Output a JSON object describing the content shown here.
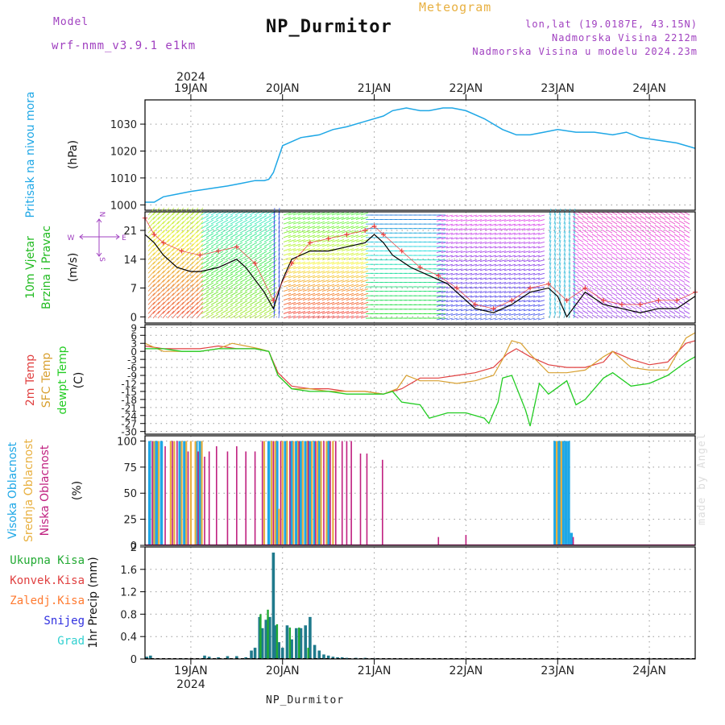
{
  "header": {
    "model_label": "Model",
    "model_name": "wrf-nmm_v3.9.1 e1km",
    "station": "NP_Durmitor",
    "product": "Meteogram",
    "lonlat": "lon,lat (19.0187E, 43.15N)",
    "altitude": "Nadmorska Visina 2212m",
    "model_altitude": "Nadmorska Visina u modelu 2024.23m",
    "footer": "NP_Durmitor",
    "watermark": "made by Angel",
    "year": "2024"
  },
  "colors": {
    "pressure": "#1ea7e6",
    "temp2m": "#e04040",
    "sfc": "#d8a030",
    "dewpt": "#22cc22",
    "high_cloud": "#1ea7e6",
    "mid_cloud": "#e8b040",
    "low_cloud": "#c02080",
    "total_precip": "#22aa33",
    "conv_precip": "#e04040",
    "frozen_precip": "#ff7a30",
    "snow": "#3030e0",
    "graupel": "#30d0d0",
    "precip_bar": "#1f7a8c"
  },
  "chart_data": [
    {
      "type": "line",
      "panel": "pressure",
      "ylabel": [
        "Pritisak na nivou mora",
        "(hPa)"
      ],
      "ylim": [
        998,
        1039
      ],
      "yticks": [
        1000,
        1010,
        1020,
        1030
      ],
      "x_day_ticks": [
        {
          "day": 19,
          "label": "19JAN"
        },
        {
          "day": 20,
          "label": "20JAN"
        },
        {
          "day": 21,
          "label": "21JAN"
        },
        {
          "day": 22,
          "label": "22JAN"
        },
        {
          "day": 23,
          "label": "23JAN"
        },
        {
          "day": 24,
          "label": "24JAN"
        }
      ],
      "xlim": [
        18.5,
        24.5
      ],
      "series": [
        {
          "x": [
            18.5,
            18.6,
            18.7,
            18.85,
            19.0,
            19.2,
            19.4,
            19.55,
            19.7,
            19.8,
            19.85,
            19.9,
            19.95,
            20.0,
            20.2,
            20.4,
            20.55,
            20.7,
            20.9,
            21.1,
            21.2,
            21.35,
            21.5,
            21.6,
            21.75,
            21.85,
            22.0,
            22.2,
            22.4,
            22.55,
            22.7,
            22.85,
            23.0,
            23.2,
            23.4,
            23.6,
            23.75,
            23.9,
            24.1,
            24.3,
            24.5
          ],
          "y": [
            1001,
            1001,
            1003,
            1004,
            1005,
            1006,
            1007,
            1008,
            1009,
            1009,
            1009.5,
            1012,
            1017,
            1022,
            1025,
            1026,
            1028,
            1029,
            1031,
            1033,
            1035,
            1036,
            1035,
            1035,
            1036,
            1036,
            1035,
            1032,
            1028,
            1026,
            1026,
            1027,
            1028,
            1027,
            1027,
            1026,
            1027,
            1025,
            1024,
            1023,
            1021
          ]
        }
      ]
    },
    {
      "type": "line",
      "panel": "wind",
      "ylabel": [
        "10m Vjetar",
        "Brzina i Pravac",
        "(m/s)"
      ],
      "compass_legend": [
        "N",
        "S",
        "W",
        "E"
      ],
      "ylim": [
        -1.5,
        25.5
      ],
      "yticks": [
        0,
        7,
        14,
        21
      ],
      "xlim": [
        18.5,
        24.5
      ],
      "series": [
        {
          "name": "speed",
          "x": [
            18.5,
            18.6,
            18.7,
            18.85,
            19.0,
            19.1,
            19.3,
            19.5,
            19.6,
            19.7,
            19.8,
            19.9,
            20.0,
            20.1,
            20.3,
            20.5,
            20.7,
            20.9,
            21.0,
            21.1,
            21.2,
            21.4,
            21.6,
            21.8,
            21.9,
            22.1,
            22.3,
            22.5,
            22.7,
            22.9,
            23.0,
            23.1,
            23.2,
            23.3,
            23.5,
            23.7,
            23.9,
            24.1,
            24.3,
            24.5
          ],
          "y": [
            20,
            18,
            15,
            12,
            11,
            11,
            12,
            14,
            12,
            9,
            6,
            2,
            9,
            14,
            16,
            16,
            17,
            18,
            20,
            18,
            15,
            12,
            10,
            8,
            6,
            2,
            1,
            3,
            6,
            7,
            5,
            0,
            3,
            6,
            3,
            2,
            1,
            2,
            2,
            5
          ]
        },
        {
          "name": "gust",
          "x": [
            18.5,
            18.6,
            18.7,
            18.9,
            19.1,
            19.3,
            19.5,
            19.7,
            19.9,
            20.1,
            20.3,
            20.5,
            20.7,
            20.9,
            21.0,
            21.1,
            21.3,
            21.5,
            21.7,
            21.9,
            22.1,
            22.3,
            22.5,
            22.7,
            22.9,
            23.1,
            23.3,
            23.5,
            23.7,
            23.9,
            24.1,
            24.3,
            24.5
          ],
          "y": [
            24,
            20,
            18,
            16,
            15,
            16,
            17,
            13,
            4,
            13,
            18,
            19,
            20,
            21,
            22,
            20,
            16,
            12,
            10,
            7,
            3,
            2,
            4,
            7,
            8,
            4,
            7,
            4,
            3,
            3,
            4,
            4,
            6
          ]
        }
      ]
    },
    {
      "type": "line",
      "panel": "temperature",
      "ylabel": [
        "2m Temp",
        "SFC Temp",
        "dewpt Temp",
        "(C)"
      ],
      "ylim": [
        -31,
        10
      ],
      "yticks": [
        9,
        6,
        3,
        0,
        -3,
        -6,
        -9,
        -12,
        -15,
        -18,
        -21,
        -24,
        -27,
        -30
      ],
      "ytick_labels": [
        "9",
        "6",
        "3",
        "0",
        "-3",
        "-6",
        "-9",
        "-12",
        "-15",
        "-18",
        "-21",
        "-24",
        "-27",
        "-30"
      ],
      "xlim": [
        18.5,
        24.5
      ],
      "series": [
        {
          "name": "2m Temp",
          "x": [
            18.5,
            18.7,
            18.9,
            19.1,
            19.3,
            19.5,
            19.7,
            19.85,
            19.95,
            20.1,
            20.3,
            20.5,
            20.7,
            20.9,
            21.1,
            21.3,
            21.5,
            21.7,
            21.9,
            22.1,
            22.3,
            22.45,
            22.55,
            22.7,
            22.9,
            23.1,
            23.3,
            23.5,
            23.6,
            23.8,
            24.0,
            24.2,
            24.4,
            24.5
          ],
          "y": [
            2,
            1,
            1,
            1,
            2,
            1,
            1,
            0,
            -8,
            -13,
            -14,
            -14,
            -15,
            -15,
            -16,
            -14,
            -10,
            -10,
            -9,
            -8,
            -6,
            -1,
            1,
            -2,
            -5,
            -6,
            -6,
            -4,
            0,
            -3,
            -5,
            -4,
            3,
            4
          ]
        },
        {
          "name": "SFC Temp",
          "x": [
            18.5,
            18.7,
            18.9,
            19.1,
            19.3,
            19.45,
            19.6,
            19.75,
            19.85,
            19.95,
            20.1,
            20.3,
            20.5,
            20.7,
            20.9,
            21.1,
            21.25,
            21.35,
            21.5,
            21.7,
            21.9,
            22.1,
            22.3,
            22.4,
            22.5,
            22.6,
            22.7,
            22.9,
            23.1,
            23.3,
            23.5,
            23.6,
            23.8,
            24.0,
            24.2,
            24.4,
            24.5
          ],
          "y": [
            3,
            0,
            0,
            0,
            1,
            3,
            2,
            1,
            0,
            -9,
            -14,
            -14,
            -15,
            -15,
            -15,
            -16,
            -14,
            -9,
            -11,
            -11,
            -12,
            -11,
            -9,
            -3,
            4,
            3,
            -1,
            -8,
            -8,
            -7,
            -2,
            0,
            -6,
            -7,
            -7,
            5,
            7
          ]
        },
        {
          "name": "dewpt Temp",
          "x": [
            18.5,
            18.7,
            18.9,
            19.1,
            19.3,
            19.5,
            19.7,
            19.85,
            19.95,
            20.1,
            20.3,
            20.5,
            20.7,
            20.9,
            21.1,
            21.2,
            21.3,
            21.5,
            21.6,
            21.8,
            22.0,
            22.2,
            22.25,
            22.35,
            22.4,
            22.5,
            22.65,
            22.7,
            22.8,
            22.9,
            23.1,
            23.2,
            23.3,
            23.5,
            23.6,
            23.8,
            24.0,
            24.2,
            24.4,
            24.5
          ],
          "y": [
            1,
            1,
            0,
            0,
            1,
            1,
            1,
            0,
            -9,
            -14,
            -15,
            -15,
            -16,
            -16,
            -16,
            -15,
            -19,
            -20,
            -25,
            -23,
            -23,
            -25,
            -27,
            -19,
            -10,
            -9,
            -22,
            -28,
            -12,
            -16,
            -11,
            -20,
            -18,
            -10,
            -8,
            -13,
            -12,
            -9,
            -4,
            -2
          ]
        }
      ]
    },
    {
      "type": "bar",
      "panel": "cloud",
      "ylabel": [
        "Visoka Oblacnost",
        "Srednja Oblacnost",
        "Niska Oblacnost",
        "(%)"
      ],
      "ylim": [
        0,
        105
      ],
      "yticks": [
        0,
        25,
        50,
        75,
        100
      ],
      "xlim": [
        18.5,
        24.5
      ],
      "series": [
        {
          "name": "Visoka Oblacnost",
          "x": [
            18.55,
            18.6,
            18.63,
            18.68,
            18.88,
            18.93,
            19.06,
            19.1,
            19.85,
            19.94,
            20.03,
            20.1,
            20.15,
            20.2,
            20.25,
            20.3,
            20.35,
            20.4,
            20.5,
            22.97,
            23.0,
            23.03,
            23.06,
            23.09,
            23.12,
            23.15
          ],
          "y": [
            100,
            100,
            100,
            100,
            100,
            100,
            100,
            100,
            100,
            100,
            100,
            100,
            100,
            100,
            100,
            100,
            100,
            100,
            100,
            100,
            100,
            100,
            100,
            100,
            100,
            12
          ]
        },
        {
          "name": "Srednja Oblacnost",
          "x": [
            18.6,
            18.65,
            18.78,
            18.82,
            18.9,
            18.95,
            19.0,
            19.05,
            19.12,
            19.8,
            19.88,
            19.92,
            19.96,
            20.0,
            20.05,
            20.12,
            20.17,
            20.22,
            20.27,
            20.32,
            20.38,
            20.42,
            20.48,
            20.55,
            22.99,
            23.04
          ],
          "y": [
            100,
            100,
            100,
            100,
            100,
            100,
            100,
            100,
            100,
            100,
            100,
            100,
            35,
            100,
            100,
            100,
            100,
            100,
            100,
            100,
            100,
            100,
            100,
            100,
            100,
            100
          ]
        },
        {
          "name": "Niska Oblacnost",
          "x": [
            18.58,
            18.72,
            18.8,
            18.85,
            18.97,
            19.08,
            19.15,
            19.2,
            19.28,
            19.4,
            19.5,
            19.6,
            19.7,
            19.78,
            19.9,
            19.98,
            20.08,
            20.18,
            20.28,
            20.36,
            20.45,
            20.52,
            20.58,
            20.65,
            20.7,
            20.75,
            20.85,
            20.92,
            21.09,
            21.7,
            22.0,
            23.17
          ],
          "y": [
            100,
            95,
            100,
            100,
            90,
            90,
            85,
            90,
            95,
            90,
            95,
            90,
            90,
            100,
            100,
            100,
            100,
            100,
            100,
            100,
            100,
            100,
            100,
            100,
            100,
            100,
            88,
            88,
            82,
            8,
            10,
            8
          ]
        }
      ]
    },
    {
      "type": "bar",
      "panel": "precipitation",
      "ylabel": [
        "1hr Precip (mm)"
      ],
      "legend": [
        "Ukupna Kisa",
        "Konvek.Kisa",
        "Zaledj.Kisa",
        "Snijeg",
        "Grad"
      ],
      "ylim": [
        0,
        2.0
      ],
      "yticks": [
        0,
        0.4,
        0.8,
        1.2,
        1.6,
        2.0
      ],
      "ytick_labels": [
        "0",
        "0.4",
        "0.8",
        "1.2",
        "1.6",
        "2"
      ],
      "x_day_ticks_bottom": [
        {
          "day": 19,
          "label": "19JAN"
        },
        {
          "day": 20,
          "label": "20JAN"
        },
        {
          "day": 21,
          "label": "21JAN"
        },
        {
          "day": 22,
          "label": "22JAN"
        },
        {
          "day": 23,
          "label": "23JAN"
        },
        {
          "day": 24,
          "label": "24JAN"
        }
      ],
      "xlim": [
        18.5,
        24.5
      ],
      "series": [
        {
          "name": "Snijeg",
          "x": [
            18.52,
            18.56,
            18.9,
            19.15,
            19.2,
            19.3,
            19.4,
            19.5,
            19.6,
            19.66,
            19.7,
            19.75,
            19.78,
            19.82,
            19.86,
            19.9,
            19.93,
            19.96,
            20.0,
            20.05,
            20.1,
            20.15,
            20.2,
            20.25,
            20.3,
            20.35,
            20.4,
            20.45,
            20.5,
            20.55,
            20.6,
            20.65,
            20.7,
            20.8,
            20.9,
            21.0
          ],
          "y": [
            0.04,
            0.06,
            0.01,
            0.06,
            0.04,
            0.03,
            0.05,
            0.05,
            0.03,
            0.15,
            0.2,
            0.75,
            0.55,
            0.7,
            0.75,
            1.9,
            0.6,
            0.3,
            0.2,
            0.6,
            0.35,
            0.55,
            0.55,
            0.6,
            0.75,
            0.25,
            0.15,
            0.08,
            0.06,
            0.04,
            0.03,
            0.03,
            0.02,
            0.02,
            0.02,
            0.01
          ]
        },
        {
          "name": "Ukupna Kisa",
          "x": [
            19.76,
            19.84,
            19.94,
            20.08,
            20.18,
            20.28
          ],
          "y": [
            0.8,
            0.88,
            0.62,
            0.56,
            0.56,
            0.2
          ]
        }
      ]
    }
  ]
}
